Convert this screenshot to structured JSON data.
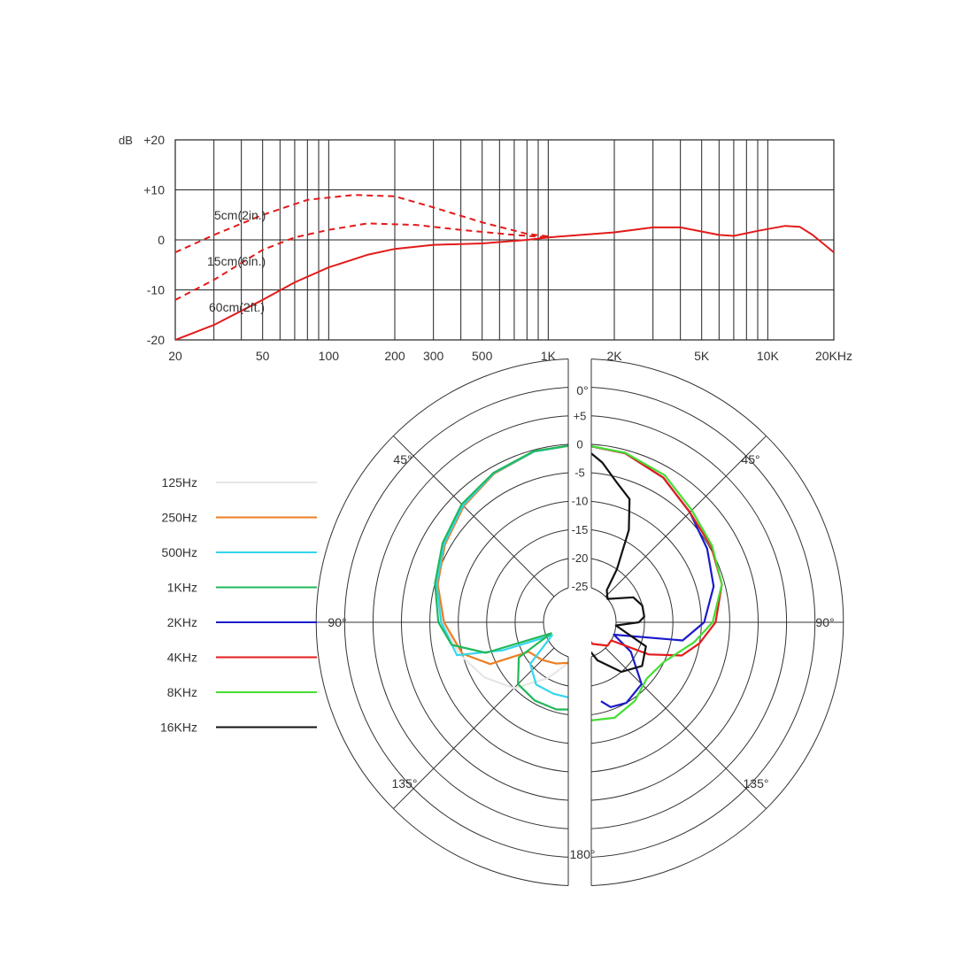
{
  "chart_data": [
    {
      "type": "line",
      "ylabel": "dB",
      "x_scale": "log",
      "xlim": [
        20,
        20000
      ],
      "ylim": [
        -20,
        20
      ],
      "grid": true,
      "x_tick_labels": [
        {
          "value": 20,
          "label": "20"
        },
        {
          "value": 50,
          "label": "50"
        },
        {
          "value": 100,
          "label": "100"
        },
        {
          "value": 200,
          "label": "200"
        },
        {
          "value": 300,
          "label": "300"
        },
        {
          "value": 500,
          "label": "500"
        },
        {
          "value": 1000,
          "label": "1K"
        },
        {
          "value": 2000,
          "label": "2K"
        },
        {
          "value": 5000,
          "label": "5K"
        },
        {
          "value": 10000,
          "label": "10K"
        },
        {
          "value": 20000,
          "label": "20KHz"
        }
      ],
      "y_tick_labels": [
        {
          "value": 20,
          "label": "+20"
        },
        {
          "value": 10,
          "label": "+10"
        },
        {
          "value": 0,
          "label": "0"
        },
        {
          "value": -10,
          "label": "-10"
        },
        {
          "value": -20,
          "label": "-20"
        }
      ],
      "series": [
        {
          "name": "5cm(2in.)",
          "color": "#e31b1b",
          "dashed": true,
          "points": [
            [
              20,
              -2.5
            ],
            [
              30,
              1
            ],
            [
              50,
              5
            ],
            [
              80,
              8
            ],
            [
              130,
              9
            ],
            [
              200,
              8.7
            ],
            [
              300,
              6.5
            ],
            [
              500,
              3.5
            ],
            [
              800,
              1.2
            ],
            [
              1000,
              0.7
            ]
          ]
        },
        {
          "name": "15cm(6in.)",
          "color": "#e31b1b",
          "dashed": true,
          "points": [
            [
              20,
              -12
            ],
            [
              30,
              -8
            ],
            [
              50,
              -2
            ],
            [
              70,
              0.5
            ],
            [
              100,
              2
            ],
            [
              150,
              3.3
            ],
            [
              250,
              3
            ],
            [
              400,
              2
            ],
            [
              700,
              1
            ],
            [
              1000,
              0.5
            ]
          ]
        },
        {
          "name": "60cm(2ft.)",
          "color": "#e31b1b",
          "dashed": false,
          "points": [
            [
              20,
              -20
            ],
            [
              30,
              -17
            ],
            [
              50,
              -12
            ],
            [
              70,
              -8.5
            ],
            [
              100,
              -5.5
            ],
            [
              150,
              -3
            ],
            [
              200,
              -1.8
            ],
            [
              300,
              -1
            ],
            [
              500,
              -0.7
            ],
            [
              800,
              0
            ],
            [
              1000,
              0.5
            ],
            [
              2000,
              1.5
            ],
            [
              3000,
              2.5
            ],
            [
              4000,
              2.5
            ],
            [
              6000,
              1
            ],
            [
              7000,
              0.8
            ],
            [
              9000,
              1.8
            ],
            [
              12000,
              2.8
            ],
            [
              14000,
              2.6
            ],
            [
              16000,
              1
            ],
            [
              20000,
              -2.5
            ]
          ]
        }
      ]
    },
    {
      "type": "polar",
      "angle_labels": [
        {
          "angle": 0,
          "label": "0°"
        },
        {
          "angle": 45,
          "label": "45°"
        },
        {
          "angle": 90,
          "label": "90°"
        },
        {
          "angle": 135,
          "label": "135°"
        },
        {
          "angle": 180,
          "label": "180°"
        },
        {
          "angle": -45,
          "label": "45°"
        },
        {
          "angle": -90,
          "label": "90°"
        },
        {
          "angle": -135,
          "label": "135°"
        }
      ],
      "r_ticks": [
        "+5",
        "0",
        "-5",
        "-10",
        "-15",
        "-20",
        "-25"
      ],
      "rlim": [
        -30,
        5
      ],
      "series": [
        {
          "name": "125Hz",
          "color": "#e6e6e6",
          "side": "left",
          "points": [
            [
              0,
              0
            ],
            [
              15,
              -0.3
            ],
            [
              30,
              -1.2
            ],
            [
              45,
              -2.5
            ],
            [
              60,
              -4
            ],
            [
              75,
              -5.5
            ],
            [
              90,
              -7.2
            ],
            [
              105,
              -9.5
            ],
            [
              120,
              -12
            ],
            [
              135,
              -15
            ],
            [
              150,
              -20
            ],
            [
              165,
              -24
            ],
            [
              175,
              -27
            ]
          ]
        },
        {
          "name": "250Hz",
          "color": "#ee7e22",
          "side": "left",
          "points": [
            [
              0,
              0
            ],
            [
              15,
              -0.3
            ],
            [
              30,
              -1.2
            ],
            [
              45,
              -2.5
            ],
            [
              60,
              -4
            ],
            [
              75,
              -5.5
            ],
            [
              90,
              -7.5
            ],
            [
              105,
              -10
            ],
            [
              115,
              -14
            ],
            [
              120,
              -21
            ],
            [
              135,
              -22
            ],
            [
              150,
              -23
            ],
            [
              165,
              -24
            ],
            [
              175,
              -24
            ]
          ]
        },
        {
          "name": "500Hz",
          "color": "#33d6ee",
          "side": "left",
          "points": [
            [
              0,
              0
            ],
            [
              15,
              -0.3
            ],
            [
              30,
              -1.1
            ],
            [
              45,
              -2.3
            ],
            [
              60,
              -3.8
            ],
            [
              75,
              -5.3
            ],
            [
              90,
              -7
            ],
            [
              105,
              -9
            ],
            [
              110,
              -17
            ],
            [
              115,
              -26
            ],
            [
              130,
              -20
            ],
            [
              145,
              -18
            ],
            [
              160,
              -18
            ],
            [
              172,
              -18
            ],
            [
              177,
              -18
            ]
          ]
        },
        {
          "name": "1KHz",
          "color": "#22b85a",
          "side": "left",
          "points": [
            [
              0,
              0
            ],
            [
              15,
              -0.2
            ],
            [
              30,
              -1
            ],
            [
              45,
              -2
            ],
            [
              60,
              -3.5
            ],
            [
              75,
              -5
            ],
            [
              90,
              -6.5
            ],
            [
              100,
              -8.5
            ],
            [
              108,
              -14
            ],
            [
              111,
              -26
            ],
            [
              120,
              -19
            ],
            [
              135,
              -16
            ],
            [
              150,
              -15.5
            ],
            [
              165,
              -15.5
            ],
            [
              177,
              -16
            ]
          ]
        },
        {
          "name": "2KHz",
          "color": "#1a1acc",
          "side": "right",
          "points": [
            [
              0,
              0
            ],
            [
              15,
              -0.6
            ],
            [
              30,
              -2
            ],
            [
              45,
              -4
            ],
            [
              60,
              -5.5
            ],
            [
              75,
              -7
            ],
            [
              90,
              -9.5
            ],
            [
              100,
              -13
            ],
            [
              110,
              -25
            ],
            [
              120,
              -21
            ],
            [
              135,
              -16
            ],
            [
              150,
              -15
            ],
            [
              160,
              -15.5
            ],
            [
              165,
              -17
            ]
          ]
        },
        {
          "name": "4KHz",
          "color": "#e31b1b",
          "side": "right",
          "points": [
            [
              0,
              0
            ],
            [
              15,
              -0.6
            ],
            [
              30,
              -2
            ],
            [
              45,
              -4
            ],
            [
              60,
              -4.7
            ],
            [
              75,
              -5.5
            ],
            [
              90,
              -7.5
            ],
            [
              100,
              -10
            ],
            [
              108,
              -12.5
            ],
            [
              115,
              -18
            ],
            [
              120,
              -25
            ],
            [
              130,
              -25
            ],
            [
              150,
              -27
            ],
            [
              160,
              -30
            ]
          ]
        },
        {
          "name": "8KHz",
          "color": "#44dd33",
          "side": "right",
          "points": [
            [
              0,
              0
            ],
            [
              15,
              -0.5
            ],
            [
              30,
              -1.5
            ],
            [
              45,
              -3.5
            ],
            [
              60,
              -4.5
            ],
            [
              75,
              -5.5
            ],
            [
              90,
              -8
            ],
            [
              100,
              -11
            ],
            [
              115,
              -15
            ],
            [
              130,
              -16
            ],
            [
              145,
              -14.5
            ],
            [
              160,
              -13.5
            ],
            [
              175,
              -14
            ]
          ]
        },
        {
          "name": "16KHz",
          "color": "#111111",
          "side": "right",
          "points": [
            [
              0,
              0
            ],
            [
              8,
              -3
            ],
            [
              15,
              -6
            ],
            [
              22,
              -8
            ],
            [
              28,
              -13
            ],
            [
              35,
              -20
            ],
            [
              40,
              -24
            ],
            [
              50,
              -25
            ],
            [
              65,
              -21
            ],
            [
              75,
              -20
            ],
            [
              85,
              -20
            ],
            [
              90,
              -21
            ],
            [
              95,
              -25
            ],
            [
              110,
              -19
            ],
            [
              125,
              -18
            ],
            [
              140,
              -20
            ],
            [
              155,
              -24
            ],
            [
              165,
              -27
            ],
            [
              172,
              -30
            ]
          ]
        }
      ]
    }
  ]
}
